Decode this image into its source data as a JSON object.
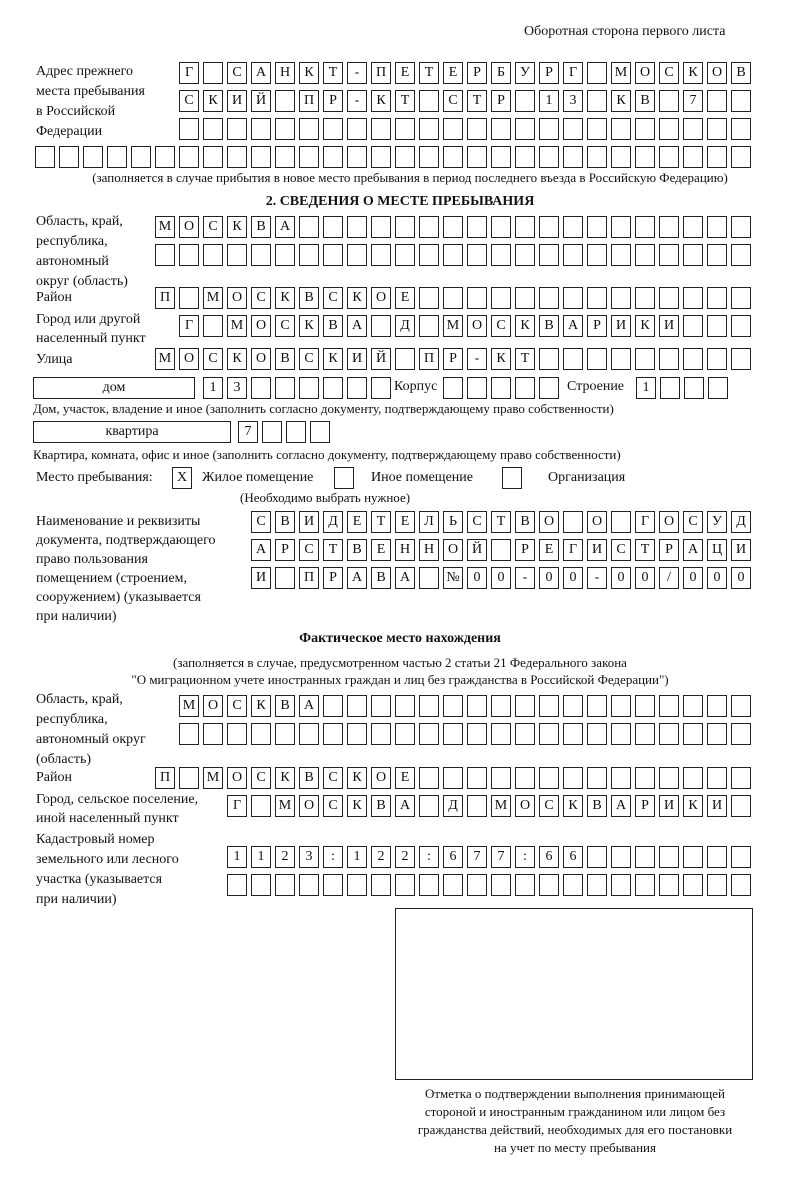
{
  "header": "Оборотная сторона первого листа",
  "prev_address": {
    "label": [
      "Адрес прежнего",
      "места пребывания",
      "в Российской",
      "Федерации"
    ],
    "rows": [
      "Г САНКТ-ПЕТЕРБУРГ МОСКОВ",
      "СКИЙ ПР-КТ СТР 13 КВ 7",
      "",
      ""
    ],
    "note": "(заполняется в случае прибытия в новое место пребывания в период последнего въезда в Российскую Федерацию)"
  },
  "section2": {
    "title": "2. СВЕДЕНИЯ О МЕСТЕ ПРЕБЫВАНИЯ",
    "region_label": [
      "Область, край,",
      "республика,",
      "автономный",
      "округ (область)"
    ],
    "region_rows": [
      "МОСКВА",
      ""
    ],
    "district_label": "Район",
    "district": "П МОСКВСКОЕ",
    "city_label": [
      "Город или другой",
      "населенный пункт"
    ],
    "city": "Г МОСКВА Д МОСКВАРИКИ",
    "street_label": "Улица",
    "street": "МОСКОВСКИЙ ПР-КТ",
    "house_type": "дом",
    "house": "13",
    "korpus_label": "Корпус",
    "korpus": "",
    "building_label": "Строение",
    "building": "1",
    "house_note": "Дом, участок, владение и иное (заполнить согласно документу, подтверждающему право собственности)",
    "flat_type": "квартира",
    "flat": "7",
    "flat_note": "Квартира, комната, офис и иное (заполнить согласно документу, подтверждающему право собственности)",
    "place_label": "Место пребывания:",
    "place_options": [
      {
        "label": "Жилое помещение",
        "mark": "Х"
      },
      {
        "label": "Иное помещение",
        "mark": ""
      },
      {
        "label": "Организация",
        "mark": ""
      }
    ],
    "place_note": "(Необходимо выбрать нужное)",
    "doc_label": [
      "Наименование и реквизиты",
      "документа, подтверждающего",
      "право пользования",
      "помещением (строением,",
      "сооружением) (указывается",
      "при наличии)"
    ],
    "doc_rows": [
      "СВИДЕТЕЛЬСТВО О ГОСУД",
      "АРСТВЕННОЙ РЕГИСТРАЦИ",
      "И ПРАВА №00-00-00/000"
    ]
  },
  "actual": {
    "title": "Фактическое место нахождения",
    "subtitle": [
      "(заполняется в случае, предусмотренном частью 2 статьи 21 Федерального закона",
      "\"О миграционном учете иностранных граждан и лиц без гражданства в Российской Федерации\")"
    ],
    "region_label": [
      "Область, край,",
      "республика,",
      "автономный округ",
      "(область)"
    ],
    "region_rows": [
      "МОСКВА",
      ""
    ],
    "district_label": "Район",
    "district": "П МОСКВСКОЕ",
    "city_label": [
      "Город, сельское поселение,",
      "иной населенный пункт"
    ],
    "city": "Г МОСКВА Д МОСКВАРИКИ",
    "cadastral_label": [
      "Кадастровый номер",
      "земельного или лесного",
      "участка (указывается",
      "при наличии)"
    ],
    "cadastral_rows": [
      "1123:122:677:66",
      ""
    ]
  },
  "stamp_caption": [
    "Отметка о подтверждении выполнения принимающей",
    "стороной и иностранным гражданином или лицом без",
    "гражданства действий, необходимых для его постановки",
    "на учет по месту пребывания"
  ]
}
